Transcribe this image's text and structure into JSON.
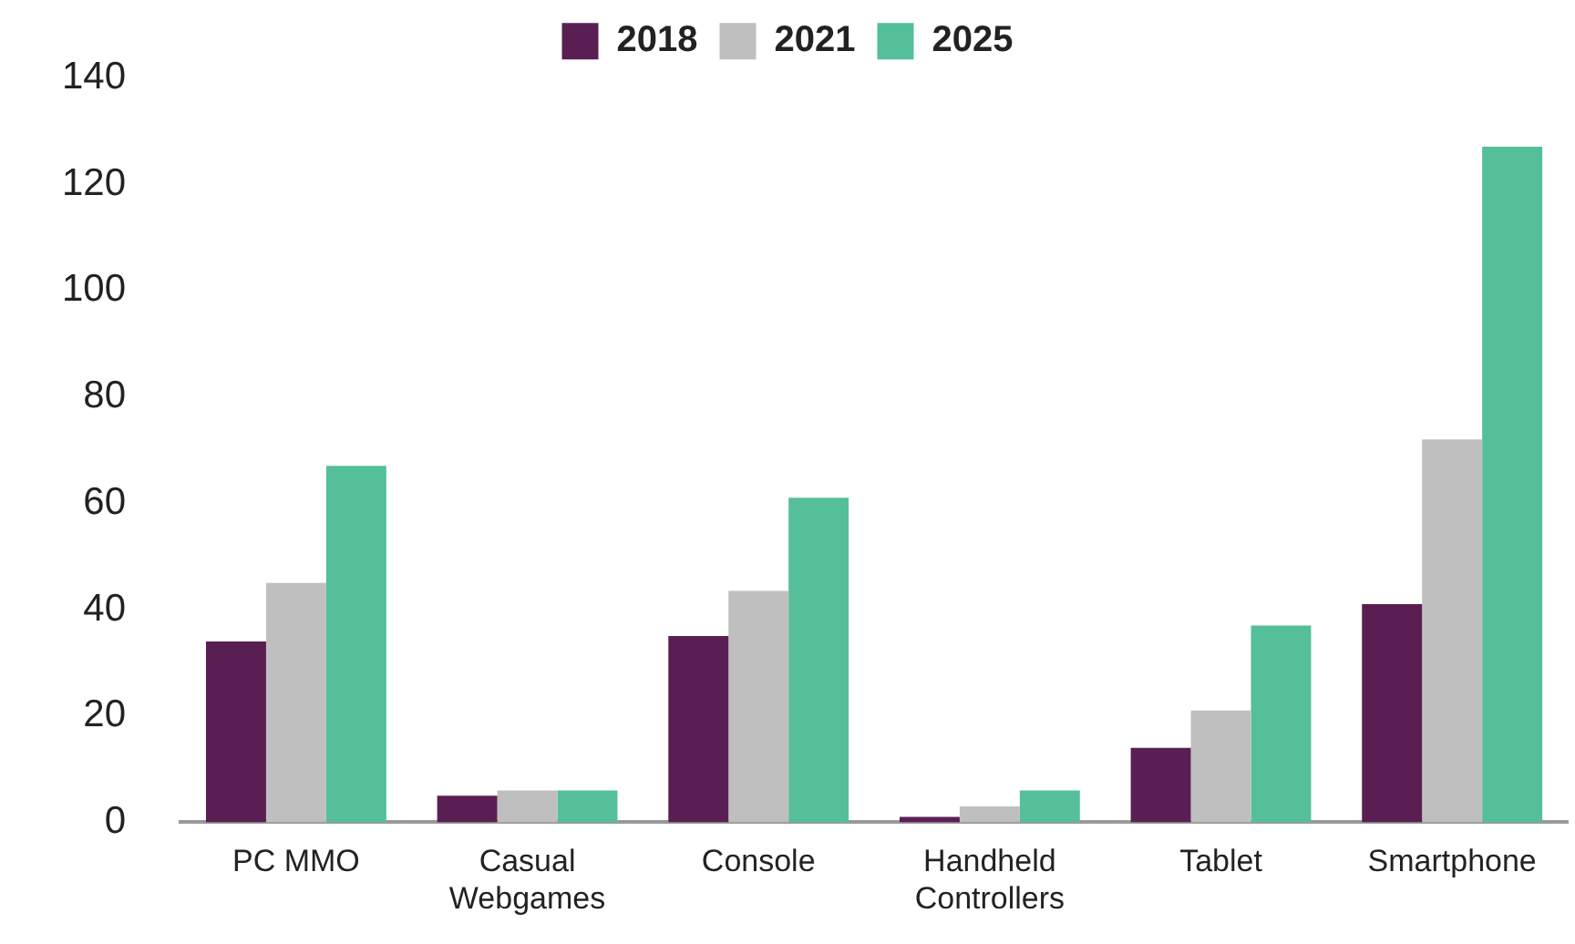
{
  "chart_data": {
    "type": "bar",
    "categories": [
      "PC MMO",
      "Casual\nWebgames",
      "Console",
      "Handheld\nControllers",
      "Tablet",
      "Smartphone"
    ],
    "series": [
      {
        "name": "2018",
        "color": "#5a1f52",
        "values": [
          34,
          5,
          35,
          1,
          14,
          41
        ]
      },
      {
        "name": "2021",
        "color": "#bfbfbf",
        "values": [
          45,
          6,
          43.5,
          3,
          21,
          72
        ]
      },
      {
        "name": "2025",
        "color": "#55bf9a",
        "values": [
          67,
          6,
          61,
          6,
          37,
          127
        ]
      }
    ],
    "ylim": [
      0,
      140
    ],
    "yticks": [
      0,
      20,
      40,
      60,
      80,
      100,
      120,
      140
    ],
    "grid": false,
    "legend": "top"
  }
}
